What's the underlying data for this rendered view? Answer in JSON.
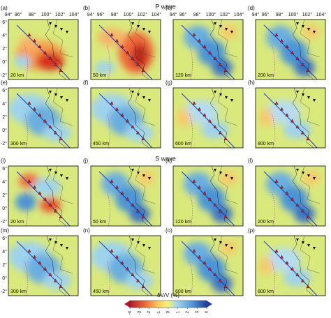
{
  "sections": [
    {
      "title": "P wave",
      "panels": [
        {
          "label": "(a)",
          "depth": "20 km"
        },
        {
          "label": "(b)",
          "depth": "50 km"
        },
        {
          "label": "(c)",
          "depth": "120 km"
        },
        {
          "label": "(d)",
          "depth": "200 km"
        },
        {
          "label": "(e)",
          "depth": "300 km"
        },
        {
          "label": "(f)",
          "depth": "450 km"
        },
        {
          "label": "(g)",
          "depth": "600 km"
        },
        {
          "label": "(h)",
          "depth": "800 km"
        }
      ]
    },
    {
      "title": "S wave",
      "panels": [
        {
          "label": "(i)",
          "depth": "20 km"
        },
        {
          "label": "(j)",
          "depth": "50 km"
        },
        {
          "label": "(k)",
          "depth": "120 km"
        },
        {
          "label": "(l)",
          "depth": "200 km"
        },
        {
          "label": "(m)",
          "depth": "300 km"
        },
        {
          "label": "(n)",
          "depth": "450 km"
        },
        {
          "label": "(o)",
          "depth": "600 km"
        },
        {
          "label": "(p)",
          "depth": "800 km"
        }
      ]
    }
  ],
  "lon_ticks": [
    "94°",
    "96°",
    "98°",
    "100°",
    "102°",
    "104°"
  ],
  "lat_ticks": [
    "6°",
    "4°",
    "2°",
    "0°",
    "-2°"
  ],
  "colorbar": {
    "label": "δV/V (%)",
    "ticks": [
      -4,
      -3,
      -2,
      -1,
      0,
      1,
      2,
      3,
      4
    ]
  }
}
